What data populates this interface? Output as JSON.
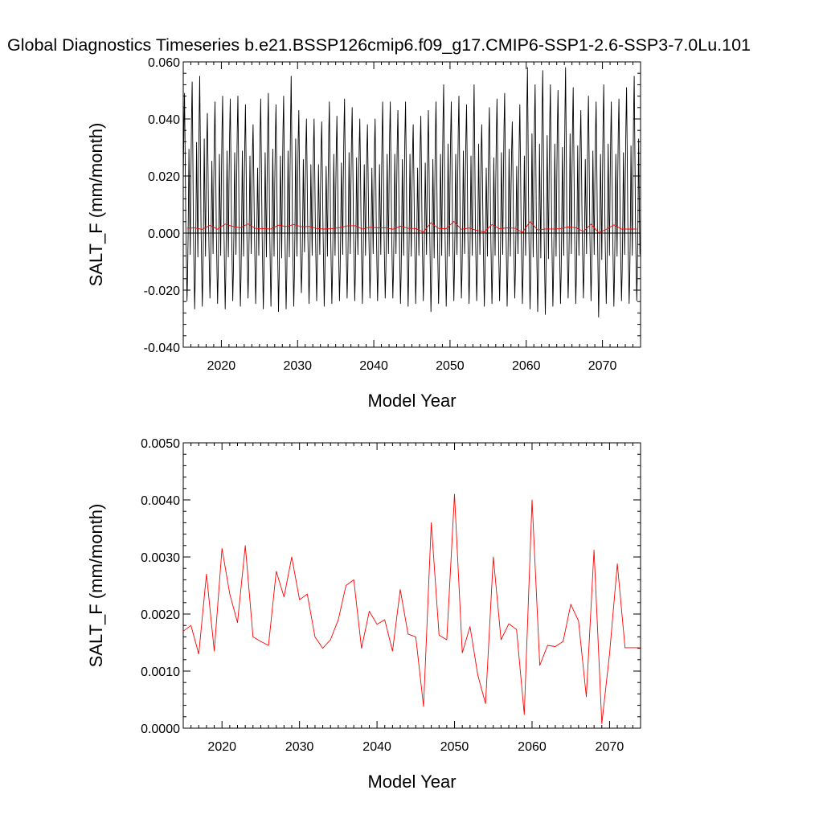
{
  "title": "Global Diagnostics Timeseries b.e21.BSSP126cmip6.f09_g17.CMIP6-SSP1-2.6-SSP3-7.0Lu.101",
  "chart_data": [
    {
      "type": "line",
      "xlabel": "Model Year",
      "ylabel": "SALT_F (mm/month)",
      "xlim": [
        2015,
        2075
      ],
      "ylim": [
        -0.04,
        0.06
      ],
      "x_ticks": [
        "2020",
        "2030",
        "2040",
        "2050",
        "2060",
        "2070"
      ],
      "y_ticks": [
        "-0.040",
        "-0.020",
        "0.000",
        "0.020",
        "0.040",
        "0.060"
      ],
      "zero_line": true,
      "grid": false,
      "series": [
        {
          "color": "#000000",
          "style": "monthly",
          "x_start": 2015,
          "step": 0.08333,
          "annual_max": [
            0.049,
            0.053,
            0.055,
            0.042,
            0.046,
            0.048,
            0.047,
            0.048,
            0.045,
            0.038,
            0.047,
            0.049,
            0.045,
            0.048,
            0.055,
            0.043,
            0.04,
            0.04,
            0.039,
            0.046,
            0.041,
            0.047,
            0.044,
            0.04,
            0.038,
            0.04,
            0.046,
            0.046,
            0.043,
            0.046,
            0.038,
            0.041,
            0.043,
            0.046,
            0.052,
            0.046,
            0.048,
            0.045,
            0.052,
            0.038,
            0.044,
            0.047,
            0.049,
            0.039,
            0.045,
            0.058,
            0.052,
            0.057,
            0.052,
            0.05,
            0.058,
            0.051,
            0.043,
            0.048,
            0.046,
            0.052,
            0.046,
            0.047,
            0.051,
            0.055
          ],
          "annual_min": [
            -0.025,
            -0.028,
            -0.027,
            -0.024,
            -0.026,
            -0.028,
            -0.025,
            -0.027,
            -0.024,
            -0.026,
            -0.028,
            -0.027,
            -0.029,
            -0.028,
            -0.027,
            -0.022,
            -0.026,
            -0.025,
            -0.027,
            -0.026,
            -0.025,
            -0.024,
            -0.025,
            -0.026,
            -0.024,
            -0.025,
            -0.024,
            -0.024,
            -0.026,
            -0.027,
            -0.026,
            -0.025,
            -0.029,
            -0.026,
            -0.027,
            -0.025,
            -0.024,
            -0.026,
            -0.025,
            -0.027,
            -0.026,
            -0.025,
            -0.027,
            -0.024,
            -0.026,
            -0.028,
            -0.029,
            -0.03,
            -0.027,
            -0.026,
            -0.024,
            -0.026,
            -0.024,
            -0.025,
            -0.031,
            -0.026,
            -0.027,
            -0.025,
            -0.026,
            -0.025
          ]
        },
        {
          "color": "#ff0000",
          "style": "annual",
          "x": [
            2015.5,
            2016.5,
            2017.5,
            2018.5,
            2019.5,
            2020.5,
            2021.5,
            2022.5,
            2023.5,
            2024.5,
            2025.5,
            2026.5,
            2027.5,
            2028.5,
            2029.5,
            2030.5,
            2031.5,
            2032.5,
            2033.5,
            2034.5,
            2035.5,
            2036.5,
            2037.5,
            2038.5,
            2039.5,
            2040.5,
            2041.5,
            2042.5,
            2043.5,
            2044.5,
            2045.5,
            2046.5,
            2047.5,
            2048.5,
            2049.5,
            2050.5,
            2051.5,
            2052.5,
            2053.5,
            2054.5,
            2055.5,
            2056.5,
            2057.5,
            2058.5,
            2059.5,
            2060.5,
            2061.5,
            2062.5,
            2063.5,
            2064.5,
            2065.5,
            2066.5,
            2067.5,
            2068.5,
            2069.5,
            2070.5,
            2071.5,
            2072.5,
            2073.5,
            2074.5
          ],
          "values": [
            0.0017,
            0.0018,
            0.0013,
            0.0027,
            0.00135,
            0.00315,
            0.00235,
            0.00185,
            0.0032,
            0.0016,
            0.00152,
            0.00145,
            0.00275,
            0.0023,
            0.003,
            0.00225,
            0.00235,
            0.0016,
            0.0014,
            0.00155,
            0.0019,
            0.0025,
            0.0026,
            0.0014,
            0.00205,
            0.00182,
            0.0019,
            0.00135,
            0.00243,
            0.00165,
            0.0016,
            0.00038,
            0.0036,
            0.00163,
            0.00155,
            0.0041,
            0.00132,
            0.00178,
            0.00093,
            0.00043,
            0.003,
            0.00155,
            0.00183,
            0.00173,
            0.00024,
            0.004,
            0.0011,
            0.00145,
            0.00143,
            0.00152,
            0.00217,
            0.00188,
            0.00055,
            0.00312,
            8e-05,
            0.0013,
            0.00288,
            0.00141,
            0.00141,
            0.00141
          ]
        }
      ]
    },
    {
      "type": "line",
      "xlabel": "Model Year",
      "ylabel": "SALT_F (mm/month)",
      "xlim": [
        2015,
        2074
      ],
      "ylim": [
        0,
        0.005
      ],
      "x_ticks": [
        "2020",
        "2030",
        "2040",
        "2050",
        "2060",
        "2070"
      ],
      "y_ticks": [
        "0.0000",
        "0.0010",
        "0.0020",
        "0.0030",
        "0.0040",
        "0.0050"
      ],
      "grid": false,
      "series": [
        {
          "color": "#ff0000",
          "x": [
            2015,
            2016,
            2017,
            2018,
            2019,
            2020,
            2021,
            2022,
            2023,
            2024,
            2025,
            2026,
            2027,
            2028,
            2029,
            2030,
            2031,
            2032,
            2033,
            2034,
            2035,
            2036,
            2037,
            2038,
            2039,
            2040,
            2041,
            2042,
            2043,
            2044,
            2045,
            2046,
            2047,
            2048,
            2049,
            2050,
            2051,
            2052,
            2053,
            2054,
            2055,
            2056,
            2057,
            2058,
            2059,
            2060,
            2061,
            2062,
            2063,
            2064,
            2065,
            2066,
            2067,
            2068,
            2069,
            2070,
            2071,
            2072,
            2073,
            2074
          ],
          "values": [
            0.0017,
            0.0018,
            0.0013,
            0.0027,
            0.00135,
            0.00315,
            0.00235,
            0.00185,
            0.0032,
            0.0016,
            0.00152,
            0.00145,
            0.00275,
            0.0023,
            0.003,
            0.00225,
            0.00235,
            0.0016,
            0.0014,
            0.00155,
            0.0019,
            0.0025,
            0.0026,
            0.0014,
            0.00205,
            0.00182,
            0.0019,
            0.00135,
            0.00243,
            0.00165,
            0.0016,
            0.00038,
            0.0036,
            0.00163,
            0.00155,
            0.0041,
            0.00132,
            0.00178,
            0.00093,
            0.00043,
            0.003,
            0.00155,
            0.00183,
            0.00173,
            0.00024,
            0.004,
            0.0011,
            0.00145,
            0.00143,
            0.00152,
            0.00217,
            0.00188,
            0.00055,
            0.00312,
            8e-05,
            0.0013,
            0.00288,
            0.00141,
            0.00141,
            0.00141
          ]
        }
      ]
    }
  ]
}
